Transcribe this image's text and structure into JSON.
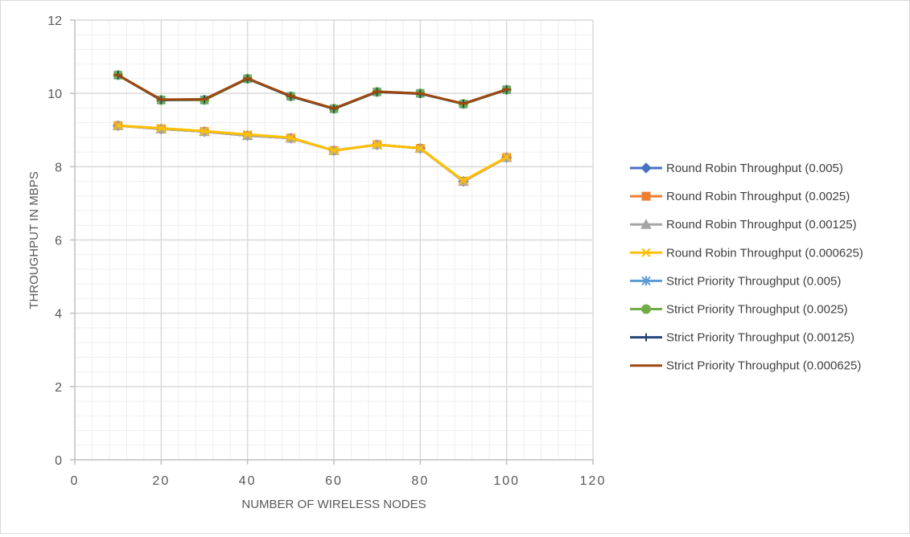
{
  "chart_data": {
    "type": "line",
    "xlabel": "NUMBER OF WIRELESS NODES",
    "ylabel": "THROUGHPUT IN MBPS",
    "xlim": [
      0,
      120
    ],
    "ylim": [
      0,
      12
    ],
    "xticks": [
      0,
      20,
      40,
      60,
      80,
      100,
      120
    ],
    "xtick_labels": [
      "0",
      "20",
      "40",
      "60",
      "80",
      "100",
      "120"
    ],
    "yticks": [
      0,
      2,
      4,
      6,
      8,
      10,
      12
    ],
    "ytick_labels": [
      "0",
      "2",
      "4",
      "6",
      "8",
      "10",
      "12"
    ],
    "grid": true,
    "minor_grid": true,
    "legend_position": "right",
    "x": [
      10,
      20,
      30,
      40,
      50,
      60,
      70,
      80,
      90,
      100
    ],
    "series": [
      {
        "name": "Round Robin Throughput (0.005)",
        "color": "#4472c4",
        "marker": "diamond",
        "values": [
          9.12,
          9.03,
          8.96,
          8.85,
          8.78,
          8.44,
          8.6,
          8.5,
          7.6,
          8.25
        ]
      },
      {
        "name": "Round Robin Throughput (0.0025)",
        "color": "#ed7d31",
        "marker": "square",
        "values": [
          9.12,
          9.03,
          8.96,
          8.85,
          8.78,
          8.44,
          8.6,
          8.5,
          7.6,
          8.25
        ]
      },
      {
        "name": "Round Robin Throughput (0.00125)",
        "color": "#a5a5a5",
        "marker": "triangle",
        "values": [
          9.12,
          9.03,
          8.96,
          8.85,
          8.78,
          8.44,
          8.6,
          8.5,
          7.6,
          8.25
        ]
      },
      {
        "name": "Round Robin Throughput (0.000625)",
        "color": "#ffc000",
        "marker": "x",
        "values": [
          9.12,
          9.05,
          8.97,
          8.88,
          8.79,
          8.44,
          8.6,
          8.5,
          7.62,
          8.26
        ]
      },
      {
        "name": "Strict Priority Throughput (0.005)",
        "color": "#5b9bd5",
        "marker": "star",
        "values": [
          10.5,
          9.82,
          9.82,
          10.4,
          9.92,
          9.58,
          10.04,
          10.0,
          9.71,
          10.1
        ]
      },
      {
        "name": "Strict Priority Throughput (0.0025)",
        "color": "#70ad47",
        "marker": "circle",
        "values": [
          10.5,
          9.82,
          9.82,
          10.4,
          9.92,
          9.58,
          10.04,
          10.0,
          9.71,
          10.1
        ]
      },
      {
        "name": "Strict Priority Throughput (0.00125)",
        "color": "#264478",
        "marker": "plus",
        "values": [
          10.5,
          9.82,
          9.84,
          10.4,
          9.92,
          9.58,
          10.04,
          9.99,
          9.72,
          10.1
        ]
      },
      {
        "name": "Strict Priority Throughput (0.000625)",
        "color": "#9e480e",
        "marker": "dash",
        "values": [
          10.5,
          9.83,
          9.84,
          10.41,
          9.93,
          9.59,
          10.05,
          10.0,
          9.72,
          10.11
        ]
      }
    ]
  }
}
